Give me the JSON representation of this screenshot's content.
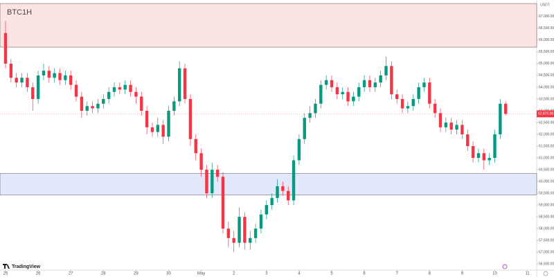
{
  "chart_data": {
    "type": "candlestick",
    "title": "BTC1H",
    "brand": "TradingView",
    "axis_unit": "USDT",
    "categories": [
      "25",
      null,
      null,
      null,
      null,
      null,
      "26",
      null,
      null,
      null,
      null,
      null,
      "27",
      null,
      null,
      null,
      null,
      null,
      "28",
      null,
      null,
      null,
      null,
      null,
      "29",
      null,
      null,
      null,
      null,
      null,
      "30",
      null,
      null,
      null,
      null,
      null,
      "May",
      null,
      null,
      null,
      null,
      null,
      "2",
      null,
      null,
      null,
      null,
      null,
      "3",
      null,
      null,
      null,
      null,
      null,
      "4",
      null,
      null,
      null,
      null,
      null,
      "5",
      null,
      null,
      null,
      null,
      null,
      "6",
      null,
      null,
      null,
      null,
      null,
      "7",
      null,
      null,
      null,
      null,
      null,
      "8",
      null,
      null,
      null,
      null,
      null,
      "9",
      null,
      null,
      null,
      null,
      null,
      "10",
      null,
      null,
      null,
      null,
      null,
      "11"
    ],
    "open": [
      66300,
      65000,
      64400,
      64200,
      64400,
      64000,
      63500,
      64500,
      64700,
      64400,
      64600,
      64300,
      64500,
      64100,
      63600,
      63000,
      63200,
      63100,
      63300,
      63500,
      63800,
      64000,
      63900,
      64100,
      63800,
      63600,
      63000,
      62300,
      62100,
      62400,
      61900,
      63000,
      63400,
      64800,
      63500,
      61800,
      61200,
      60500,
      59500,
      60500,
      60200,
      58000,
      57600,
      57400,
      58500,
      57400,
      57600,
      58000,
      58600,
      59000,
      59300,
      59800,
      59600,
      59200,
      60900,
      61800,
      62700,
      62900,
      63300,
      64100,
      64300,
      64000,
      63700,
      63800,
      63400,
      63600,
      64000,
      64300,
      64000,
      64200,
      64500,
      64900,
      63700,
      63500,
      63100,
      63200,
      63500,
      64000,
      64200,
      63300,
      62900,
      62300,
      62500,
      62200,
      62400,
      62000,
      61500,
      61000,
      61200,
      60900,
      61000,
      62000,
      63300,
      null,
      null,
      null,
      null
    ],
    "high": [
      66800,
      65200,
      64600,
      64600,
      64600,
      64200,
      64700,
      65000,
      64900,
      64800,
      64800,
      64700,
      64700,
      64300,
      63800,
      63400,
      63400,
      63500,
      63700,
      64000,
      64200,
      64200,
      64300,
      64300,
      64000,
      63800,
      63200,
      62500,
      62700,
      62600,
      63200,
      63600,
      65100,
      65000,
      63700,
      62000,
      61400,
      60700,
      60800,
      60700,
      60400,
      58300,
      57900,
      58900,
      58700,
      57900,
      58200,
      58800,
      59200,
      59500,
      60100,
      60000,
      59800,
      61100,
      62000,
      62900,
      63200,
      63500,
      64300,
      64500,
      64500,
      64200,
      64000,
      64000,
      63800,
      64200,
      64500,
      64500,
      64400,
      64700,
      65300,
      65100,
      63900,
      63700,
      63400,
      63700,
      64200,
      64400,
      64400,
      63500,
      63100,
      62700,
      62700,
      62600,
      62600,
      62200,
      61700,
      61400,
      61400,
      61200,
      62200,
      63500,
      63400,
      null,
      null,
      null,
      null
    ],
    "low": [
      64800,
      64200,
      64000,
      64000,
      63800,
      63000,
      63300,
      64300,
      64200,
      64200,
      64100,
      64100,
      63900,
      63400,
      62700,
      62800,
      62900,
      62900,
      63100,
      63300,
      63600,
      63700,
      63700,
      63600,
      63300,
      62800,
      62000,
      61900,
      61900,
      61600,
      61700,
      62800,
      63200,
      63300,
      61500,
      60900,
      60200,
      59300,
      59300,
      60000,
      57800,
      57200,
      57000,
      57200,
      57100,
      57100,
      57400,
      57800,
      58400,
      58800,
      59100,
      59400,
      59000,
      59000,
      60700,
      61600,
      62500,
      62700,
      63100,
      63900,
      63800,
      63500,
      63500,
      63200,
      63200,
      63400,
      63800,
      63800,
      63800,
      64000,
      64300,
      63500,
      63300,
      62900,
      62900,
      63000,
      63300,
      63800,
      63100,
      62700,
      62100,
      62100,
      62000,
      62000,
      61800,
      61300,
      60800,
      60800,
      60500,
      60700,
      60800,
      61800,
      62800,
      null,
      null,
      null,
      null
    ],
    "close": [
      65000,
      64400,
      64200,
      64400,
      64000,
      63500,
      64500,
      64700,
      64400,
      64600,
      64300,
      64500,
      64100,
      63600,
      63000,
      63200,
      63100,
      63300,
      63500,
      63800,
      64000,
      63900,
      64100,
      63800,
      63600,
      63000,
      62300,
      62100,
      62400,
      61900,
      63000,
      63400,
      64800,
      63500,
      61800,
      61200,
      60500,
      59500,
      60500,
      60200,
      58000,
      57600,
      57400,
      58500,
      57400,
      57600,
      58000,
      58600,
      59000,
      59300,
      59800,
      59600,
      59200,
      60900,
      61800,
      62700,
      62900,
      63300,
      64100,
      64300,
      64000,
      63700,
      63800,
      63400,
      63600,
      64000,
      64300,
      64000,
      64200,
      64500,
      64900,
      63700,
      63500,
      63100,
      63200,
      63500,
      64000,
      64200,
      63300,
      62900,
      62300,
      62500,
      62200,
      62400,
      62000,
      61500,
      61000,
      61200,
      60900,
      61000,
      62000,
      63300,
      62870,
      null,
      null,
      null,
      null
    ],
    "up_color": "#089981",
    "down_color": "#f23645",
    "current_price": 62870,
    "current_price_label": "62,870.00",
    "zones": [
      {
        "low": 65700,
        "high": 67550,
        "color": "#fde4e4",
        "border": "#666"
      },
      {
        "low": 59430,
        "high": 60340,
        "color": "#e3e8fd",
        "border": "#666"
      }
    ],
    "ylim": [
      56300,
      67700
    ],
    "yticks": [
      {
        "value": 56500,
        "label": "56,500.00"
      },
      {
        "value": 57000,
        "label": "57,000.00"
      },
      {
        "value": 57500,
        "label": "57,500.00"
      },
      {
        "value": 58000,
        "label": "58,000.00"
      },
      {
        "value": 58500,
        "label": "58,500.00"
      },
      {
        "value": 59000,
        "label": "59,000.00"
      },
      {
        "value": 59500,
        "label": "59,500.00"
      },
      {
        "value": 60000,
        "label": "60,000.00"
      },
      {
        "value": 60500,
        "label": "60,500.00"
      },
      {
        "value": 61000,
        "label": "61,000.00"
      },
      {
        "value": 61500,
        "label": "61,500.00"
      },
      {
        "value": 62000,
        "label": "62,000.00"
      },
      {
        "value": 62500,
        "label": "62,500.00"
      },
      {
        "value": 63000,
        "label": "63,000.00"
      },
      {
        "value": 63500,
        "label": "63,500.00"
      },
      {
        "value": 64000,
        "label": "64,000.00"
      },
      {
        "value": 64500,
        "label": "64,500.00"
      },
      {
        "value": 65000,
        "label": "65,000.00"
      },
      {
        "value": 65500,
        "label": "65,500.00"
      },
      {
        "value": 66000,
        "label": "66,000.00"
      },
      {
        "value": 66500,
        "label": "66,500.00"
      },
      {
        "value": 67000,
        "label": "67,000.00"
      }
    ],
    "grid": false
  }
}
